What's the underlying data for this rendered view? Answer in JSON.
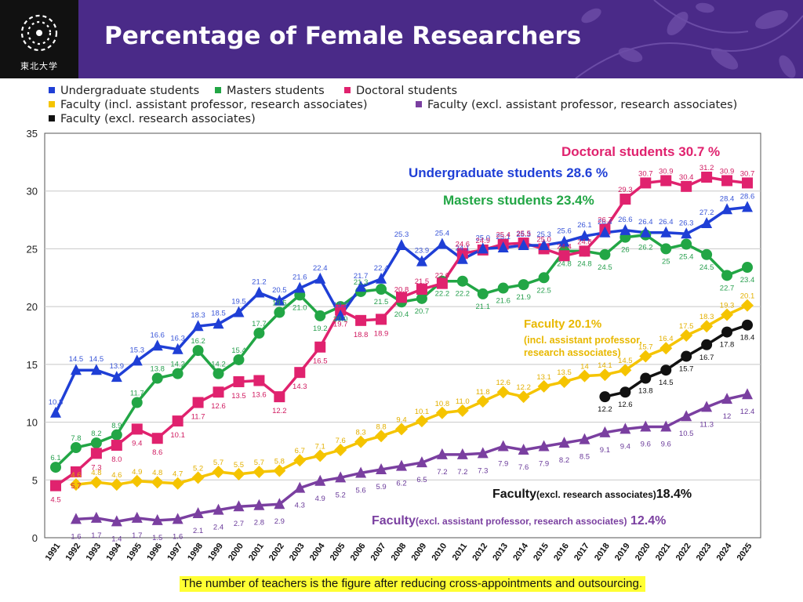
{
  "header": {
    "title": "Percentage of Female Researchers",
    "logo_text": "東北大学",
    "background": "#4a2a88"
  },
  "legend": [
    {
      "label": "Undergraduate students",
      "color": "#1f3fd6"
    },
    {
      "label": "Masters students",
      "color": "#22a645"
    },
    {
      "label": "Doctoral students",
      "color": "#e0226e"
    },
    {
      "label": "Faculty (incl. assistant professor, research associates)",
      "color": "#f5c400"
    },
    {
      "label": "Faculty (excl. assistant professor, research associates)",
      "color": "#7a3fa0"
    },
    {
      "label": "Faculty (excl. research associates)",
      "color": "#111111"
    }
  ],
  "footnote": "The number of teachers is the figure after reducing cross-appointments and outsourcing.",
  "chart_data": {
    "type": "line",
    "x": [
      "1991",
      "1992",
      "1993",
      "1994",
      "1995",
      "1996",
      "1997",
      "1998",
      "1999",
      "2000",
      "2001",
      "2002",
      "2003",
      "2004",
      "2005",
      "2006",
      "2007",
      "2008",
      "2009",
      "2010",
      "2011",
      "2012",
      "2013",
      "2014",
      "2015",
      "2016",
      "2017",
      "2018",
      "2019",
      "2020",
      "2021",
      "2022",
      "2023",
      "2024",
      "2025"
    ],
    "ylim": [
      0,
      35
    ],
    "yticks": [
      0,
      5,
      10,
      15,
      20,
      25,
      30,
      35
    ],
    "grid": true,
    "series": [
      {
        "name": "Undergraduate students",
        "color": "#1f3fd6",
        "marker": "triangle",
        "label_color": "#3a56d8",
        "values": [
          10.8,
          14.5,
          14.5,
          13.9,
          15.3,
          16.6,
          16.3,
          18.3,
          18.5,
          19.5,
          21.2,
          20.5,
          21.6,
          22.4,
          19.2,
          21.7,
          22.4,
          25.3,
          23.9,
          25.4,
          24.1,
          25.0,
          25.1,
          25.3,
          25.3,
          25.6,
          26.1,
          26.4,
          26.6,
          26.4,
          26.4,
          26.3,
          27.2,
          28.4,
          28.6
        ]
      },
      {
        "name": "Masters students",
        "color": "#22a645",
        "marker": "circle",
        "label_color": "#2aa050",
        "values": [
          6.1,
          7.8,
          8.2,
          8.9,
          11.7,
          13.8,
          14.2,
          16.2,
          14.2,
          15.4,
          17.7,
          19.5,
          21.0,
          19.2,
          20.0,
          21.3,
          21.5,
          20.4,
          20.7,
          22.2,
          22.2,
          21.1,
          21.6,
          21.9,
          22.5,
          24.8,
          24.8,
          24.5,
          26.0,
          26.2,
          25.0,
          25.4,
          24.5,
          22.7,
          23.4
        ],
        "value_labels": [
          "6.1",
          "7.8",
          "8.2",
          "8.9",
          "11.7",
          "13.8",
          "14.2",
          "16.2",
          "14.2",
          "15.4",
          "17.7",
          "19.5",
          "21.0",
          "19.2",
          "20.0",
          "21.3",
          "21.5",
          "20.4",
          "20.7",
          "22.2",
          "22.2",
          "21.1",
          "21.6",
          "21.9",
          "22.5",
          "24.8",
          "24.8",
          "24.5",
          "26",
          "26.2",
          "25",
          "25.4",
          "24.5",
          "22.7",
          "23.4"
        ]
      },
      {
        "name": "Doctoral students",
        "color": "#e0226e",
        "marker": "square",
        "label_color": "#d01a60",
        "values": [
          4.5,
          5.7,
          7.3,
          8.0,
          9.4,
          8.6,
          10.1,
          11.7,
          12.6,
          13.5,
          13.6,
          12.2,
          14.3,
          16.5,
          19.7,
          18.8,
          18.9,
          20.8,
          21.5,
          22.0,
          24.6,
          24.9,
          25.4,
          25.5,
          25.0,
          24.4,
          24.8,
          26.7,
          29.3,
          30.7,
          30.9,
          30.4,
          31.2,
          30.9,
          30.7
        ]
      },
      {
        "name": "Faculty (incl. assistant professor, research associates)",
        "color": "#f5c400",
        "marker": "diamond",
        "label_color": "#e3b000",
        "x_start": "1992",
        "values": [
          null,
          4.6,
          4.8,
          4.6,
          4.9,
          4.8,
          4.7,
          5.2,
          5.7,
          5.5,
          5.7,
          5.8,
          6.7,
          7.1,
          7.6,
          8.3,
          8.8,
          9.4,
          10.1,
          10.8,
          11.0,
          11.8,
          12.6,
          12.2,
          13.1,
          13.5,
          14.0,
          14.1,
          14.5,
          15.7,
          16.4,
          17.5,
          18.3,
          19.3,
          20.1
        ],
        "value_labels": [
          null,
          "4.6",
          "4.8",
          "4.6",
          "4.9",
          "4.8",
          "4.7",
          "5.2",
          "5.7",
          "5.5",
          "5.7",
          "5.8",
          "6.7",
          "7.1",
          "7.6",
          "8.3",
          "8.8",
          "9.4",
          "10.1",
          "10.8",
          "11.0",
          "11.8",
          "12.6",
          "12.2",
          "13.1",
          "13.5",
          "14",
          "14.1",
          "14.5",
          "15.7",
          "16.4",
          "17.5",
          "18.3",
          "19.3",
          "20.1"
        ]
      },
      {
        "name": "Faculty (excl. assistant professor, research associates)",
        "color": "#7a3fa0",
        "marker": "triangle",
        "label_color": "#6a3a9a",
        "x_start": "1992",
        "values": [
          null,
          1.6,
          1.7,
          1.4,
          1.7,
          1.5,
          1.6,
          2.1,
          2.4,
          2.7,
          2.8,
          2.9,
          4.3,
          4.9,
          5.2,
          5.6,
          5.9,
          6.2,
          6.5,
          7.2,
          7.2,
          7.3,
          7.9,
          7.6,
          7.9,
          8.2,
          8.5,
          9.1,
          9.4,
          9.6,
          9.6,
          10.5,
          11.3,
          12.0,
          12.4
        ],
        "value_labels": [
          null,
          "1.6",
          "1.7",
          "1.4",
          "1.7",
          "1.5",
          "1.6",
          "2.1",
          "2.4",
          "2.7",
          "2.8",
          "2.9",
          "4.3",
          "4.9",
          "5.2",
          "5.6",
          "5.9",
          "6.2",
          "6.5",
          "7.2",
          "7.2",
          "7.3",
          "7.9",
          "7.6",
          "7.9",
          "8.2",
          "8.5",
          "9.1",
          "9.4",
          "9.6",
          "9.6",
          "10.5",
          "11.3",
          "12",
          "12.4"
        ]
      },
      {
        "name": "Faculty (excl. research associates)",
        "color": "#111111",
        "marker": "circle",
        "label_color": "#111111",
        "x_start": "2018",
        "values": [
          null,
          null,
          null,
          null,
          null,
          null,
          null,
          null,
          null,
          null,
          null,
          null,
          null,
          null,
          null,
          null,
          null,
          null,
          null,
          null,
          null,
          null,
          null,
          null,
          null,
          null,
          null,
          12.2,
          12.6,
          13.8,
          14.5,
          15.7,
          16.7,
          17.8,
          18.4
        ]
      }
    ],
    "annotations": [
      {
        "text": "Doctoral students 30.7 %",
        "color": "#e0226e",
        "size": 17
      },
      {
        "text": "Undergraduate students 28.6 %",
        "color": "#1f3fd6",
        "size": 17
      },
      {
        "text": "Masters students 23.4%",
        "color": "#22a645",
        "size": 17
      },
      {
        "text": "Faculty   20.1%",
        "color": "#e8b800",
        "size": 15,
        "lines": [
          "(incl. assistant professor,",
          "research associates)"
        ]
      },
      {
        "text": "Faculty",
        "small": "(excl. research associates)",
        "tail": "18.4%",
        "color": "#111111",
        "size": 16
      },
      {
        "text": "Faculty",
        "small": "(excl. assistant professor, research associates)",
        "tail": "  12.4%",
        "color": "#7a3fa0",
        "size": 16
      }
    ]
  }
}
